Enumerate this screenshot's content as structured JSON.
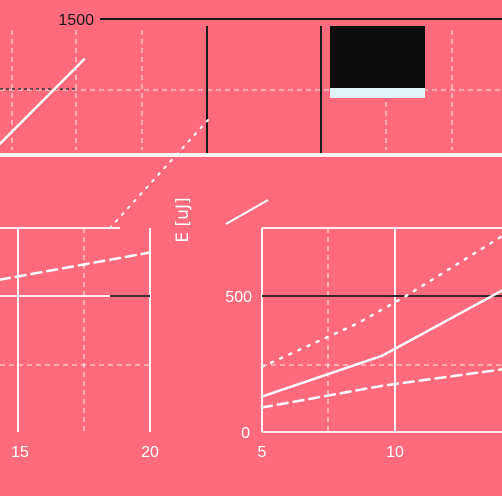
{
  "colors": {
    "background": "#ff6b7d",
    "foreground": "#ffffff",
    "dark": "#1a1a1a"
  },
  "chart_data": [
    {
      "type": "line",
      "panel": "top",
      "ytick_labels": [
        "1500"
      ]
    },
    {
      "type": "line",
      "panel": "bottom-left",
      "xlim": [
        12.5,
        20
      ],
      "xtick_labels": [
        "15",
        "20"
      ],
      "series": [
        {
          "style": "solid",
          "x": [
            12.5,
            16.7
          ],
          "y": [
            1060,
            1370
          ]
        },
        {
          "style": "dashed",
          "x": [
            12.5,
            20
          ],
          "y": [
            560,
            660
          ]
        }
      ]
    },
    {
      "type": "line",
      "panel": "bottom-right",
      "xlim": [
        5,
        15
      ],
      "ylim": [
        0,
        750
      ],
      "xtick_labels": [
        "5",
        "10"
      ],
      "ytick_labels": [
        "0",
        "500"
      ],
      "ylabel": "E [uJ]",
      "series": [
        {
          "style": "dotted",
          "x": [
            5,
            7,
            9,
            11,
            13,
            15
          ],
          "y": [
            240,
            320,
            400,
            500,
            610,
            720
          ]
        },
        {
          "style": "solid",
          "x": [
            5,
            10,
            15
          ],
          "y": [
            130,
            280,
            520
          ]
        },
        {
          "style": "dashed",
          "x": [
            5,
            10,
            15
          ],
          "y": [
            90,
            170,
            230
          ]
        }
      ]
    }
  ]
}
